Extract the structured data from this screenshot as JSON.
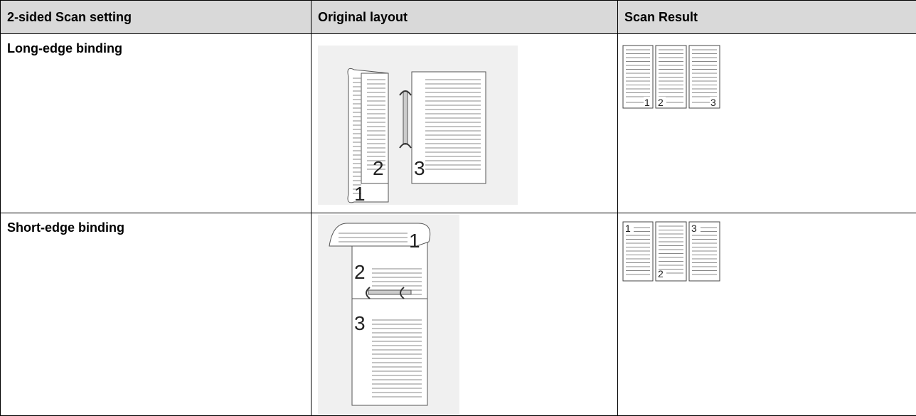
{
  "table": {
    "header": [
      "2-sided Scan setting",
      "Original layout",
      "Scan Result"
    ],
    "rows": [
      {
        "setting": "Long-edge binding",
        "original_labels": [
          "1",
          "2",
          "3"
        ],
        "result_labels": [
          "1",
          "2",
          "3"
        ]
      },
      {
        "setting": "Short-edge binding",
        "original_labels": [
          "1",
          "2",
          "3"
        ],
        "result_labels": [
          "1",
          "2",
          "3"
        ]
      }
    ]
  }
}
